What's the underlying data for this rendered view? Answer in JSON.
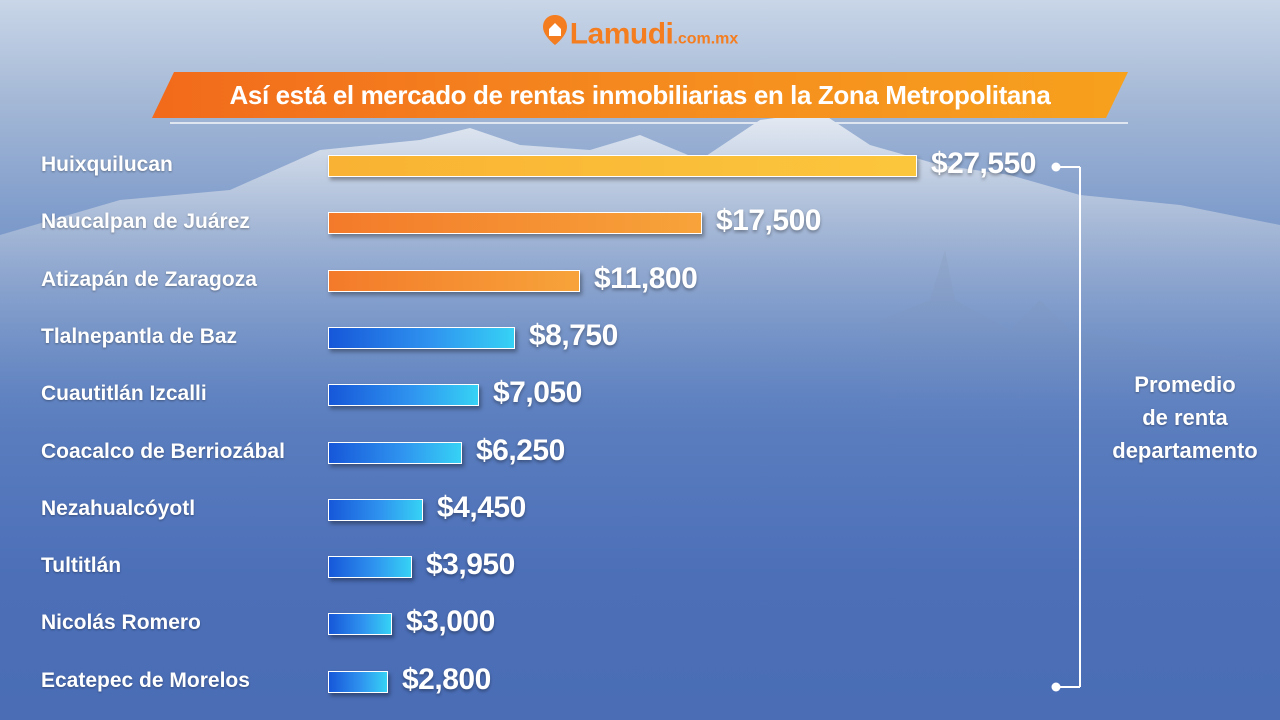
{
  "logo": {
    "brand": "Lamudi",
    "domain": ".com.mx",
    "icon": "location-pin-icon"
  },
  "title": "Así está el mercado de rentas inmobiliarias en la Zona Metropolitana",
  "side_label": [
    "Promedio",
    "de renta",
    "departamento"
  ],
  "colors": {
    "banner": "#f58a1f",
    "bar_top": "#fbc63c",
    "bar_warm": "#f37a2a",
    "bar_cool_start": "#1657d9",
    "bar_cool_end": "#36d2f5",
    "text": "#ffffff"
  },
  "chart_data": {
    "type": "bar",
    "orientation": "horizontal",
    "title": "Así está el mercado de rentas inmobiliarias en la Zona Metropolitana",
    "categories": [
      "Huixquilucan",
      "Naucalpan de Juárez",
      "Atizapán de Zaragoza",
      "Tlalnepantla de Baz",
      "Cuautitlán Izcalli",
      "Coacalco de Berriozábal",
      "Nezahualcóyotl",
      "Tultitlán",
      "Nicolás Romero",
      "Ecatepec de Morelos"
    ],
    "values": [
      27550,
      17500,
      11800,
      8750,
      7050,
      6250,
      4450,
      3950,
      3000,
      2800
    ],
    "value_labels": [
      "$27,550",
      "$17,500",
      "$11,800",
      "$8,750",
      "$7,050",
      "$6,250",
      "$4,450",
      "$3,950",
      "$3,000",
      "$2,800"
    ],
    "bar_styles": [
      "warm-yellow",
      "warm-orange",
      "warm-orange",
      "cool",
      "cool",
      "cool",
      "cool",
      "cool",
      "cool",
      "cool"
    ],
    "xlim": [
      0,
      27550
    ],
    "grid": false,
    "legend": "none"
  }
}
